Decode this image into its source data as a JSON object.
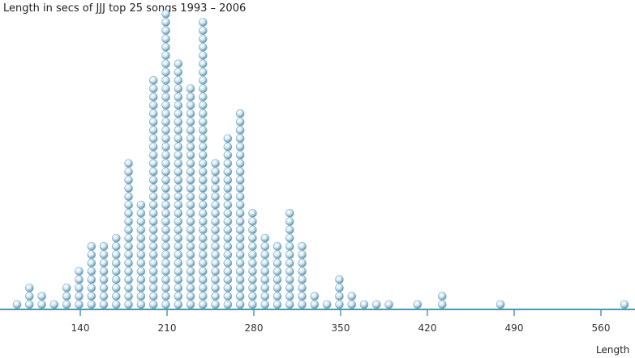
{
  "chart_data": {
    "type": "dot",
    "title": "Length in secs of JJJ top 25 songs 1993 – 2006",
    "xlabel": "Length",
    "ylabel": "",
    "xlim": [
      83,
      579
    ],
    "xticks": [
      140,
      210,
      280,
      350,
      420,
      490,
      560
    ],
    "grid": false,
    "dot_color": "#7fb0c8",
    "axis_color": "#4a9bb0",
    "columns": [
      {
        "x": 89,
        "count": 1
      },
      {
        "x": 99,
        "count": 3
      },
      {
        "x": 109,
        "count": 2
      },
      {
        "x": 119,
        "count": 1
      },
      {
        "x": 129,
        "count": 3
      },
      {
        "x": 139,
        "count": 5
      },
      {
        "x": 149,
        "count": 8
      },
      {
        "x": 159,
        "count": 8
      },
      {
        "x": 169,
        "count": 9
      },
      {
        "x": 179,
        "count": 18
      },
      {
        "x": 189,
        "count": 13
      },
      {
        "x": 199,
        "count": 28
      },
      {
        "x": 209,
        "count": 36
      },
      {
        "x": 219,
        "count": 30
      },
      {
        "x": 229,
        "count": 27
      },
      {
        "x": 239,
        "count": 35
      },
      {
        "x": 249,
        "count": 18
      },
      {
        "x": 259,
        "count": 21
      },
      {
        "x": 269,
        "count": 24
      },
      {
        "x": 279,
        "count": 12
      },
      {
        "x": 289,
        "count": 9
      },
      {
        "x": 299,
        "count": 8
      },
      {
        "x": 309,
        "count": 12
      },
      {
        "x": 319,
        "count": 8
      },
      {
        "x": 329,
        "count": 2
      },
      {
        "x": 339,
        "count": 1
      },
      {
        "x": 349,
        "count": 4
      },
      {
        "x": 359,
        "count": 2
      },
      {
        "x": 369,
        "count": 1
      },
      {
        "x": 379,
        "count": 1
      },
      {
        "x": 389,
        "count": 1
      },
      {
        "x": 412,
        "count": 1
      },
      {
        "x": 432,
        "count": 2
      },
      {
        "x": 479,
        "count": 1
      },
      {
        "x": 579,
        "count": 1
      }
    ]
  }
}
